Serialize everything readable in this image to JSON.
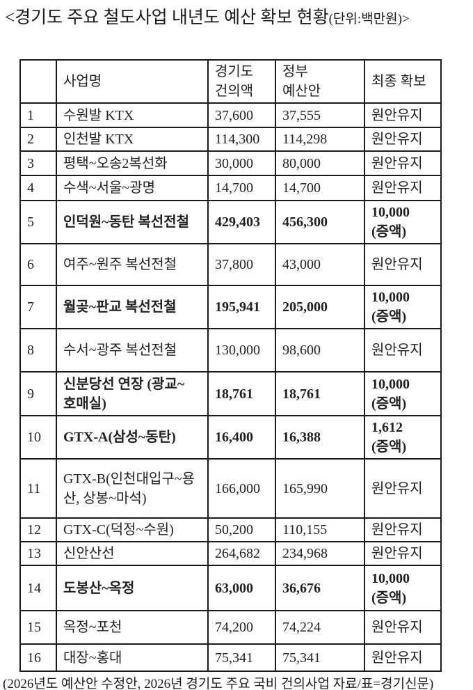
{
  "title": {
    "main": "<경기도 주요 철도사업 내년도 예산 확보 현황",
    "unit": "(단위:백만원)>"
  },
  "footer": {
    "source": "(2026년도 예산안 수정안, 2026년 경기도 주요 국비 건의사업 자료/표=경기신문)"
  },
  "chart_data": {
    "type": "table",
    "title": "경기도 주요 철도사업 내년도 예산 확보 현황",
    "unit_note": "단위:백만원",
    "columns": [
      "",
      "사업명",
      "경기도 건의액",
      "정부 예산안",
      "최종 확보"
    ],
    "headers": {
      "no": "",
      "name": "사업명",
      "gyeonggi": "경기도\n건의액",
      "gov": "정부\n예산안",
      "final": "최종 확보"
    },
    "rows": [
      {
        "no": "1",
        "name": "수원발 KTX",
        "gyeonggi_request": "37,600",
        "gov_budget": "37,555",
        "final": "원안유지",
        "emphasis": false
      },
      {
        "no": "2",
        "name": "인천발 KTX",
        "gyeonggi_request": "114,300",
        "gov_budget": "114,298",
        "final": "원안유지",
        "emphasis": false
      },
      {
        "no": "3",
        "name": "평택~오송2복선화",
        "gyeonggi_request": "30,000",
        "gov_budget": "80,000",
        "final": "원안유지",
        "emphasis": false
      },
      {
        "no": "4",
        "name": "수색~서울~광명",
        "gyeonggi_request": "14,700",
        "gov_budget": "14,700",
        "final": "원안유지",
        "emphasis": false
      },
      {
        "no": "5",
        "name": "인덕원~동탄 복선전철",
        "gyeonggi_request": "429,403",
        "gov_budget": "456,300",
        "final": "10,000\n(증액)",
        "emphasis": true
      },
      {
        "no": "6",
        "name": "여주~원주 복선전철",
        "gyeonggi_request": "37,800",
        "gov_budget": "43,000",
        "final": "원안유지",
        "emphasis": false
      },
      {
        "no": "7",
        "name": "월곶~판교 복선전철",
        "gyeonggi_request": "195,941",
        "gov_budget": "205,000",
        "final": "10,000\n(증액)",
        "emphasis": true
      },
      {
        "no": "8",
        "name": "수서~광주 복선전철",
        "gyeonggi_request": "130,000",
        "gov_budget": "98,600",
        "final": "원안유지",
        "emphasis": false
      },
      {
        "no": "9",
        "name": "신분당선 연장 (광교~\n호매실)",
        "gyeonggi_request": "18,761",
        "gov_budget": "18,761",
        "final": "10,000\n(증액)",
        "emphasis": true
      },
      {
        "no": "10",
        "name": "GTX-A(삼성~동탄)",
        "gyeonggi_request": "16,400",
        "gov_budget": "16,388",
        "final": "1,612\n(증액)",
        "emphasis": true
      },
      {
        "no": "11",
        "name": "GTX-B(인천대입구~용\n산, 상봉~마석)",
        "gyeonggi_request": "166,000",
        "gov_budget": "165,990",
        "final": "원안유지",
        "emphasis": false
      },
      {
        "no": "12",
        "name": "GTX-C(덕정~수원)",
        "gyeonggi_request": "50,200",
        "gov_budget": "110,155",
        "final": "원안유지",
        "emphasis": false
      },
      {
        "no": "13",
        "name": "신안산선",
        "gyeonggi_request": "264,682",
        "gov_budget": "234,968",
        "final": "원안유지",
        "emphasis": false
      },
      {
        "no": "14",
        "name": "도봉산~옥정",
        "gyeonggi_request": "63,000",
        "gov_budget": "36,676",
        "final": "10,000\n(증액)",
        "emphasis": true
      },
      {
        "no": "15",
        "name": "옥정~포천",
        "gyeonggi_request": "74,200",
        "gov_budget": "74,224",
        "final": "원안유지",
        "emphasis": false
      },
      {
        "no": "16",
        "name": "대장~홍대",
        "gyeonggi_request": "75,341",
        "gov_budget": "75,341",
        "final": "원안유지",
        "emphasis": false
      }
    ]
  }
}
